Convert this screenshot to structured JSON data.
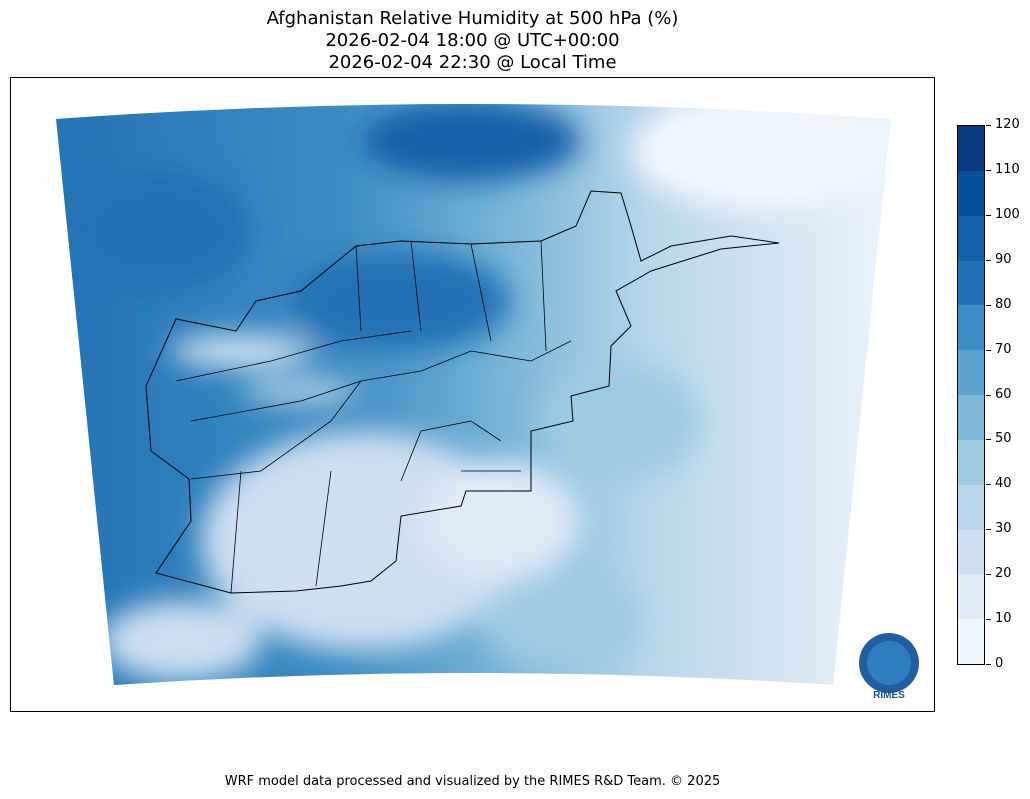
{
  "title": {
    "line1": "Afghanistan Relative Humidity at 500 hPa (%)",
    "line2": "2026-02-04 18:00 @ UTC+00:00",
    "line3": "2026-02-04 22:30 @ Local Time"
  },
  "colorbar": {
    "ticks": [
      "0",
      "10",
      "20",
      "30",
      "40",
      "50",
      "60",
      "70",
      "80",
      "90",
      "100",
      "110",
      "120"
    ],
    "colors": [
      "#eff6fd",
      "#dfebf7",
      "#cedff1",
      "#b9d6ea",
      "#9ecae1",
      "#7db8da",
      "#5ba3d0",
      "#3d8dc4",
      "#2272b5",
      "#1561a9",
      "#08509b",
      "#083b7c"
    ]
  },
  "logo": {
    "text": "RIMES"
  },
  "footer": "WRF model data processed and visualized by the RIMES R&D Team. © 2025"
}
